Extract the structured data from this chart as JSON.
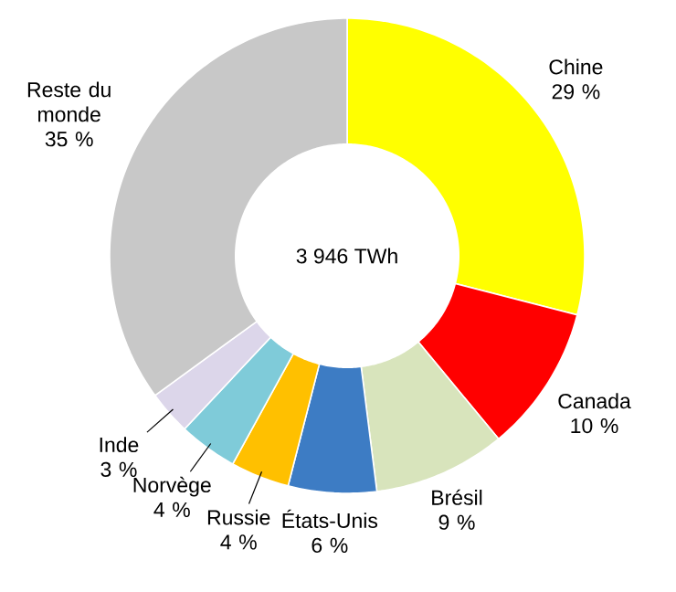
{
  "chart_data": {
    "type": "donut",
    "categories": [
      "Chine",
      "Canada",
      "Brésil",
      "États-Unis",
      "Russie",
      "Norvège",
      "Inde",
      "Reste du monde"
    ],
    "values": [
      29,
      10,
      9,
      6,
      4,
      4,
      3,
      35
    ],
    "value_labels": [
      "29 %",
      "10 %",
      "9 %",
      "6 %",
      "4 %",
      "4 %",
      "3 %",
      "35 %"
    ],
    "colors": [
      "#ffff00",
      "#ff0000",
      "#d8e4bc",
      "#3d7cc4",
      "#ffc000",
      "#7fcbd9",
      "#dcd6ea",
      "#c8c8c8"
    ],
    "annotations": [
      "3 946 TWh"
    ]
  }
}
